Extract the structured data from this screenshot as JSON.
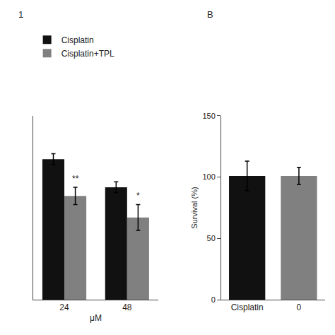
{
  "chart_data": [
    {
      "type": "bar",
      "title": "1",
      "categories": [
        "24",
        "48"
      ],
      "series": [
        {
          "name": "Cisplatin",
          "color": "#111111",
          "values": [
            65,
            52
          ],
          "errors": [
            2.5,
            2.5
          ]
        },
        {
          "name": "Cisplatin+TPL",
          "color": "#808080",
          "values": [
            48,
            38
          ],
          "errors": [
            4,
            6
          ]
        }
      ],
      "xlabel": "μM",
      "ylim": [
        0,
        85
      ],
      "tick_labels": "x",
      "grid": false,
      "legend": "top left",
      "annotations": [
        {
          "text": "**",
          "category": "24",
          "series": "Cisplatin+TPL"
        },
        {
          "text": "*",
          "category": "48",
          "series": "Cisplatin+TPL"
        }
      ]
    },
    {
      "type": "bar",
      "title": "B",
      "categories": [
        "Cisplatin",
        "0"
      ],
      "values": [
        101,
        101
      ],
      "errors": [
        12,
        7
      ],
      "colors": [
        "#111111",
        "#808080"
      ],
      "ylabel": "Survival (%)",
      "ylim": [
        0,
        150
      ],
      "yticks": [
        0,
        50,
        100,
        150
      ],
      "grid": false
    }
  ]
}
